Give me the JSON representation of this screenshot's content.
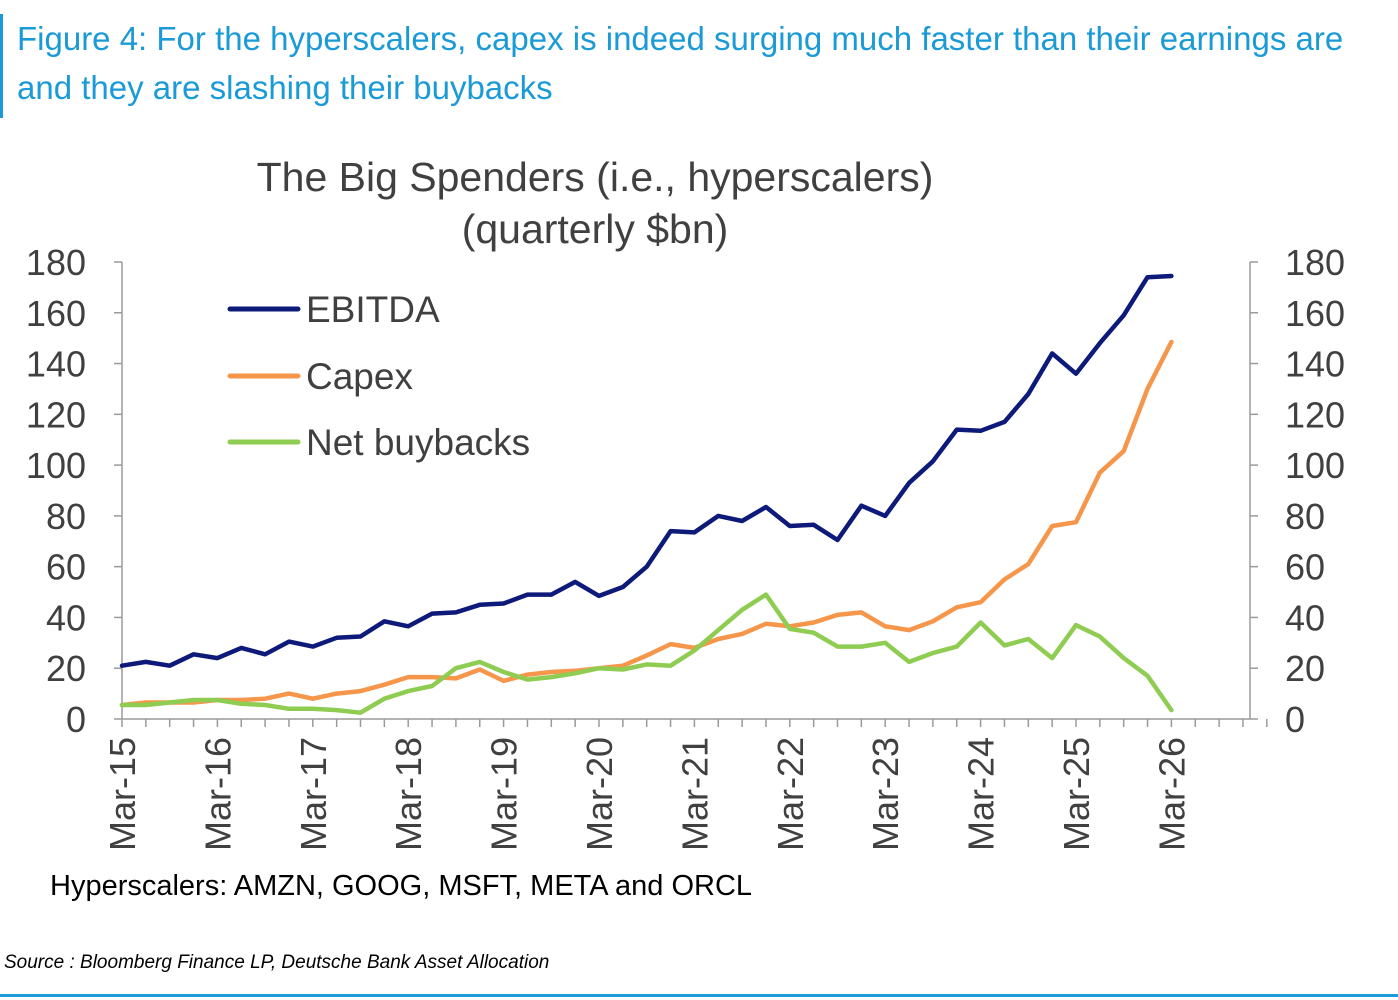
{
  "figure_title": "Figure 4: For the hyperscalers, capex is indeed surging much faster than their earnings are and they are slashing their buybacks",
  "colors": {
    "header_accent": "#1a9ad6",
    "ebitda": "#0d1a7a",
    "capex": "#f5964a",
    "net_buybacks": "#8fcc52",
    "axis": "#9a9a9a"
  },
  "chart_data": {
    "type": "line",
    "title": "The Big Spenders (i.e., hyperscalers)",
    "subtitle": "(quarterly $bn)",
    "xlabel": "",
    "ylabel": "",
    "ylim": [
      0,
      180
    ],
    "y_ticks": [
      0,
      20,
      40,
      60,
      80,
      100,
      120,
      140,
      160,
      180
    ],
    "secondary_y_ticks": [
      0,
      20,
      40,
      60,
      80,
      100,
      120,
      140,
      160,
      180
    ],
    "x_tick_labels": [
      "Mar-15",
      "Mar-16",
      "Mar-17",
      "Mar-18",
      "Mar-19",
      "Mar-20",
      "Mar-21",
      "Mar-22",
      "Mar-23",
      "Mar-24",
      "Mar-25",
      "Mar-26"
    ],
    "x_range_quarters": [
      0,
      48
    ],
    "grid": false,
    "legend_position": "top-left",
    "series": [
      {
        "name": "EBITDA",
        "color": "#0d1a7a",
        "values": [
          21,
          22.5,
          21,
          25.5,
          24,
          28,
          25.5,
          30.5,
          28.5,
          32,
          32.5,
          38.5,
          36.5,
          41.5,
          42,
          45,
          45.5,
          49,
          49,
          54,
          48.5,
          52,
          60,
          74,
          73.5,
          80,
          78,
          83.5,
          76,
          76.5,
          70.5,
          84,
          80,
          93,
          101.5,
          114,
          113.5,
          117,
          128,
          144,
          136,
          148,
          159,
          174,
          174.5
        ]
      },
      {
        "name": "Capex",
        "color": "#f5964a",
        "values": [
          5.5,
          6.5,
          6.5,
          6.5,
          7.5,
          7.5,
          8,
          10,
          8,
          10,
          11,
          13.5,
          16.5,
          16.5,
          16,
          19.5,
          15,
          17.5,
          18.5,
          19,
          20,
          21,
          25,
          29.5,
          28,
          31.5,
          33.5,
          37.5,
          36.5,
          38,
          41,
          42,
          36.5,
          35,
          38.5,
          44,
          46,
          55,
          61,
          76,
          77.5,
          97,
          105.5,
          130,
          148.5
        ]
      },
      {
        "name": "Net buybacks",
        "color": "#8fcc52",
        "values": [
          5.5,
          5.5,
          6.5,
          7.5,
          7.5,
          6,
          5.5,
          4,
          4,
          3.5,
          2.5,
          8,
          11,
          13,
          20,
          22.5,
          18.5,
          15.5,
          16.5,
          18,
          20,
          19.5,
          21.5,
          21,
          27,
          35,
          43,
          49,
          35.5,
          34,
          28.5,
          28.5,
          30,
          22.5,
          26,
          28.5,
          38,
          29,
          31.5,
          24,
          37,
          32.5,
          24,
          17,
          3.5
        ]
      }
    ]
  },
  "footnote": "Hyperscalers: AMZN, GOOG, MSFT, META and ORCL",
  "source": "Source : Bloomberg Finance LP, Deutsche Bank Asset Allocation"
}
